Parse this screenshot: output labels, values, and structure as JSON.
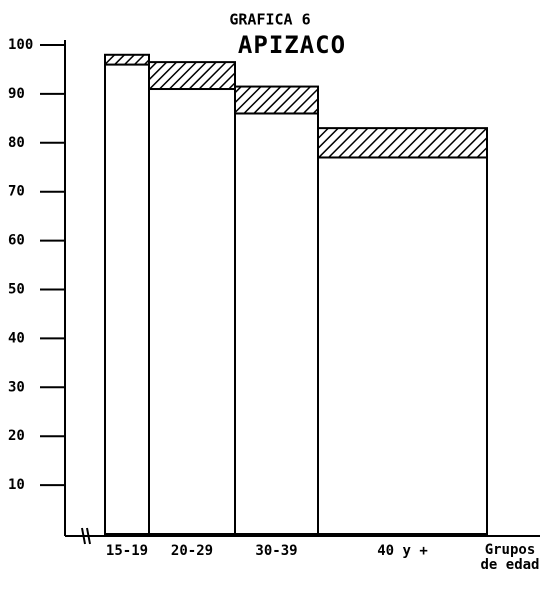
{
  "chart_data": {
    "type": "bar",
    "title": "GRAFICA 6",
    "subtitle": "APIZACO",
    "categories": [
      "15-19",
      "20-29",
      "30-39",
      "40 y +"
    ],
    "series": [
      {
        "color": "#ffffff",
        "values": [
          96,
          91,
          86,
          77
        ]
      },
      {
        "color": "#000000",
        "values": [
          2,
          5.5,
          5.5,
          6
        ]
      }
    ],
    "x_label": [
      "Grupos",
      "de edad"
    ],
    "ylim": [
      0,
      100
    ],
    "yticks": [
      10,
      20,
      30,
      40,
      50,
      60,
      70,
      80,
      90,
      100
    ],
    "stacked": true
  }
}
